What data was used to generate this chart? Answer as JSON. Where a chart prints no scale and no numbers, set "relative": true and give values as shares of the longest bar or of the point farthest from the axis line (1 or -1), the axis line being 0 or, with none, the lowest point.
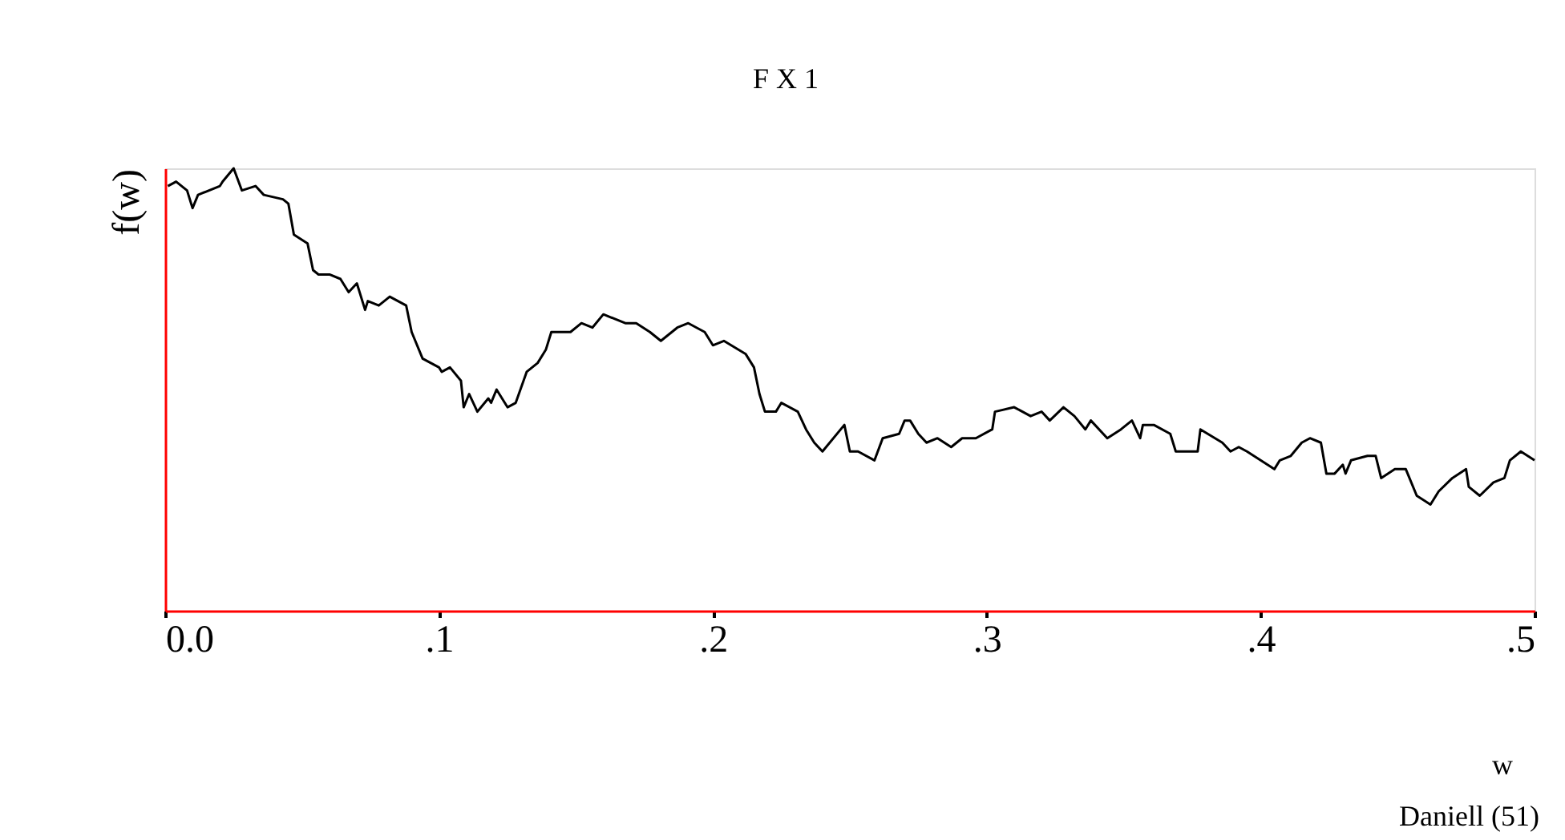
{
  "chart_data": {
    "type": "line",
    "subtitle": "F X 1",
    "xlabel": "w",
    "ylabel": "f(w)",
    "relative": true,
    "xlim": [
      0,
      0.5
    ],
    "xticks": [
      {
        "value": 0,
        "label": "0.0"
      },
      {
        "value": 0.1,
        "label": ".1"
      },
      {
        "value": 0.2,
        "label": ".2"
      },
      {
        "value": 0.3,
        "label": ".3"
      },
      {
        "value": 0.4,
        "label": ".4"
      },
      {
        "value": 0.5,
        "label": ".5"
      }
    ],
    "tick_labels": "x",
    "grid": false,
    "marker": "none",
    "line_style": "solid",
    "annotations": [
      "Daniell (51)"
    ],
    "series": [
      {
        "color": "#000000",
        "x": [
          0.001,
          0.004,
          0.008,
          0.01,
          0.012,
          0.02,
          0.021,
          0.025,
          0.028,
          0.033,
          0.036,
          0.043,
          0.045,
          0.047,
          0.052,
          0.054,
          0.056,
          0.06,
          0.064,
          0.067,
          0.07,
          0.073,
          0.074,
          0.078,
          0.082,
          0.088,
          0.09,
          0.094,
          0.1,
          0.101,
          0.104,
          0.108,
          0.109,
          0.111,
          0.114,
          0.118,
          0.119,
          0.121,
          0.125,
          0.128,
          0.132,
          0.136,
          0.139,
          0.141,
          0.148,
          0.152,
          0.156,
          0.16,
          0.168,
          0.172,
          0.177,
          0.181,
          0.187,
          0.191,
          0.197,
          0.2,
          0.204,
          0.212,
          0.215,
          0.217,
          0.219,
          0.223,
          0.225,
          0.231,
          0.234,
          0.237,
          0.24,
          0.248,
          0.25,
          0.253,
          0.259,
          0.262,
          0.268,
          0.27,
          0.272,
          0.275,
          0.278,
          0.282,
          0.287,
          0.291,
          0.296,
          0.302,
          0.303,
          0.31,
          0.316,
          0.32,
          0.323,
          0.328,
          0.332,
          0.336,
          0.338,
          0.344,
          0.349,
          0.353,
          0.356,
          0.357,
          0.361,
          0.367,
          0.369,
          0.377,
          0.378,
          0.386,
          0.389,
          0.392,
          0.395,
          0.4,
          0.405,
          0.407,
          0.411,
          0.415,
          0.418,
          0.422,
          0.424,
          0.427,
          0.43,
          0.431,
          0.433,
          0.439,
          0.442,
          0.444,
          0.449,
          0.453,
          0.457,
          0.462,
          0.465,
          0.47,
          0.475,
          0.476,
          0.48,
          0.485,
          0.489,
          0.491,
          0.495,
          0.5
        ],
        "values": [
          0.96,
          0.97,
          0.95,
          0.91,
          0.94,
          0.96,
          0.97,
          1.0,
          0.95,
          0.96,
          0.94,
          0.93,
          0.92,
          0.85,
          0.83,
          0.77,
          0.76,
          0.76,
          0.75,
          0.72,
          0.74,
          0.68,
          0.7,
          0.69,
          0.71,
          0.69,
          0.63,
          0.57,
          0.55,
          0.54,
          0.55,
          0.52,
          0.46,
          0.49,
          0.45,
          0.48,
          0.47,
          0.5,
          0.46,
          0.47,
          0.54,
          0.56,
          0.59,
          0.63,
          0.63,
          0.65,
          0.64,
          0.67,
          0.65,
          0.65,
          0.63,
          0.61,
          0.64,
          0.65,
          0.63,
          0.6,
          0.61,
          0.58,
          0.55,
          0.49,
          0.45,
          0.45,
          0.47,
          0.45,
          0.41,
          0.38,
          0.36,
          0.42,
          0.36,
          0.36,
          0.34,
          0.39,
          0.4,
          0.43,
          0.43,
          0.4,
          0.38,
          0.39,
          0.37,
          0.39,
          0.39,
          0.41,
          0.45,
          0.46,
          0.44,
          0.45,
          0.43,
          0.46,
          0.44,
          0.41,
          0.43,
          0.39,
          0.41,
          0.43,
          0.39,
          0.42,
          0.42,
          0.4,
          0.36,
          0.36,
          0.41,
          0.38,
          0.36,
          0.37,
          0.36,
          0.34,
          0.32,
          0.34,
          0.35,
          0.38,
          0.39,
          0.38,
          0.31,
          0.31,
          0.33,
          0.31,
          0.34,
          0.35,
          0.35,
          0.3,
          0.32,
          0.32,
          0.26,
          0.24,
          0.27,
          0.3,
          0.32,
          0.28,
          0.26,
          0.29,
          0.3,
          0.34,
          0.36,
          0.34
        ]
      }
    ]
  }
}
